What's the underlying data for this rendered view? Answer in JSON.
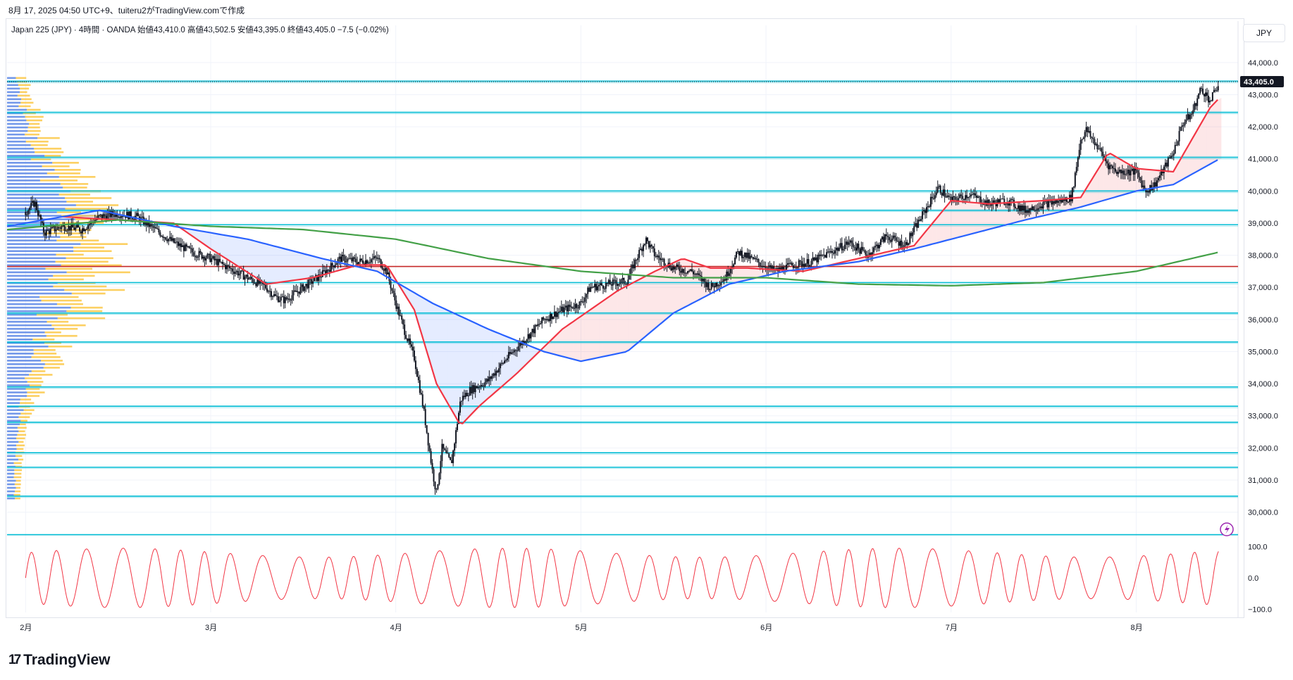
{
  "header": {
    "snapshot_text": "8月 17, 2025 04:50 UTC+9、tuiteru2がTradingView.comで作成",
    "symbol": "Japan 225 (JPY)",
    "interval": "4時間",
    "source": "OANDA",
    "ohlc_text": "始値43,410.0  高値43,502.5  安値43,395.0  終値43,405.0  −7.5 (−0.02%)",
    "currency": "JPY"
  },
  "brand": {
    "name": "TradingView"
  },
  "colors": {
    "candle": "#131722",
    "ma_fast": "#f23645",
    "ma_mid": "#2962ff",
    "ma_slow": "#43a047",
    "level_line": "#00bcd4",
    "red_level": "#c62828",
    "vp_blue": "#5b86e5",
    "vp_yellow": "#fbc02d",
    "oscillator": "#f23645"
  },
  "chart_data": {
    "type": "line",
    "price_axis": {
      "ticks": [
        44000,
        43000,
        42000,
        41000,
        40000,
        39000,
        38000,
        37000,
        36000,
        35000,
        34000,
        33000,
        32000,
        31000,
        30000
      ],
      "tick_labels": [
        "44,000.0",
        "43,000.0",
        "42,000.0",
        "41,000.0",
        "40,000.0",
        "39,000.0",
        "38,000.0",
        "37,000.0",
        "36,000.0",
        "35,000.0",
        "34,000.0",
        "33,000.0",
        "32,000.0",
        "31,000.0",
        "30,000.0"
      ],
      "range": [
        29400,
        44500
      ],
      "last_price": 43405,
      "last_price_label": "43,405.0"
    },
    "time_axis": {
      "months": [
        "2月",
        "3月",
        "4月",
        "5月",
        "6月",
        "7月",
        "8月"
      ],
      "month_index": [
        0,
        1,
        2,
        3,
        4,
        5,
        6
      ],
      "range_months": [
        -0.1,
        6.55
      ]
    },
    "close_path": [
      [
        0.0,
        39350
      ],
      [
        0.05,
        39650
      ],
      [
        0.1,
        38700
      ],
      [
        0.2,
        38900
      ],
      [
        0.3,
        38800
      ],
      [
        0.4,
        39200
      ],
      [
        0.5,
        39300
      ],
      [
        0.6,
        39200
      ],
      [
        0.7,
        38800
      ],
      [
        0.8,
        38400
      ],
      [
        0.9,
        38100
      ],
      [
        1.0,
        37900
      ],
      [
        1.1,
        37600
      ],
      [
        1.2,
        37300
      ],
      [
        1.3,
        37000
      ],
      [
        1.35,
        36700
      ],
      [
        1.4,
        36600
      ],
      [
        1.5,
        37000
      ],
      [
        1.6,
        37400
      ],
      [
        1.7,
        37900
      ],
      [
        1.8,
        37800
      ],
      [
        1.9,
        37900
      ],
      [
        1.95,
        37500
      ],
      [
        2.0,
        36500
      ],
      [
        2.05,
        35600
      ],
      [
        2.1,
        34800
      ],
      [
        2.15,
        33200
      ],
      [
        2.2,
        31200
      ],
      [
        2.22,
        30600
      ],
      [
        2.25,
        32000
      ],
      [
        2.3,
        31500
      ],
      [
        2.35,
        33500
      ],
      [
        2.4,
        33800
      ],
      [
        2.5,
        34100
      ],
      [
        2.6,
        34800
      ],
      [
        2.7,
        35400
      ],
      [
        2.8,
        36000
      ],
      [
        2.9,
        36300
      ],
      [
        3.0,
        36500
      ],
      [
        3.05,
        37000
      ],
      [
        3.15,
        37100
      ],
      [
        3.25,
        37200
      ],
      [
        3.3,
        37900
      ],
      [
        3.35,
        38500
      ],
      [
        3.4,
        38000
      ],
      [
        3.5,
        37600
      ],
      [
        3.6,
        37500
      ],
      [
        3.7,
        37000
      ],
      [
        3.78,
        37300
      ],
      [
        3.85,
        38100
      ],
      [
        3.95,
        37800
      ],
      [
        4.05,
        37500
      ],
      [
        4.15,
        37700
      ],
      [
        4.25,
        37800
      ],
      [
        4.35,
        38100
      ],
      [
        4.45,
        38400
      ],
      [
        4.55,
        38000
      ],
      [
        4.65,
        38600
      ],
      [
        4.75,
        38300
      ],
      [
        4.85,
        39300
      ],
      [
        4.93,
        40100
      ],
      [
        5.0,
        39700
      ],
      [
        5.1,
        39900
      ],
      [
        5.2,
        39600
      ],
      [
        5.3,
        39700
      ],
      [
        5.4,
        39400
      ],
      [
        5.5,
        39600
      ],
      [
        5.6,
        39700
      ],
      [
        5.65,
        39800
      ],
      [
        5.7,
        41600
      ],
      [
        5.73,
        41900
      ],
      [
        5.8,
        41300
      ],
      [
        5.85,
        40800
      ],
      [
        5.9,
        40600
      ],
      [
        6.0,
        40600
      ],
      [
        6.05,
        40000
      ],
      [
        6.1,
        40200
      ],
      [
        6.15,
        40700
      ],
      [
        6.2,
        41200
      ],
      [
        6.25,
        42100
      ],
      [
        6.3,
        42400
      ],
      [
        6.35,
        43200
      ],
      [
        6.4,
        42800
      ],
      [
        6.45,
        43400
      ]
    ],
    "series": [
      {
        "values": [
          [
            0.2,
            39200
          ],
          [
            0.8,
            39000
          ],
          [
            1.0,
            38200
          ],
          [
            1.3,
            37100
          ],
          [
            1.55,
            37300
          ],
          [
            1.8,
            37700
          ],
          [
            1.95,
            37700
          ],
          [
            2.1,
            36300
          ],
          [
            2.22,
            34000
          ],
          [
            2.35,
            32700
          ],
          [
            2.45,
            33300
          ],
          [
            2.65,
            34300
          ],
          [
            2.9,
            35700
          ],
          [
            3.2,
            36900
          ],
          [
            3.4,
            37500
          ],
          [
            3.55,
            37900
          ],
          [
            3.7,
            37600
          ],
          [
            3.9,
            37600
          ],
          [
            4.2,
            37500
          ],
          [
            4.5,
            37900
          ],
          [
            4.8,
            38300
          ],
          [
            5.0,
            39700
          ],
          [
            5.2,
            39600
          ],
          [
            5.5,
            39700
          ],
          [
            5.7,
            39800
          ],
          [
            5.85,
            41200
          ],
          [
            6.0,
            40700
          ],
          [
            6.2,
            40600
          ],
          [
            6.4,
            42600
          ],
          [
            6.45,
            42900
          ]
        ]
      },
      {
        "values": [
          [
            -0.1,
            38900
          ],
          [
            0.4,
            39400
          ],
          [
            0.8,
            38900
          ],
          [
            1.2,
            38500
          ],
          [
            1.6,
            37900
          ],
          [
            1.9,
            37500
          ],
          [
            2.2,
            36500
          ],
          [
            2.5,
            35700
          ],
          [
            2.8,
            35000
          ],
          [
            3.0,
            34700
          ],
          [
            3.25,
            35000
          ],
          [
            3.5,
            36200
          ],
          [
            3.8,
            37100
          ],
          [
            4.1,
            37500
          ],
          [
            4.5,
            37800
          ],
          [
            4.8,
            38200
          ],
          [
            5.0,
            38500
          ],
          [
            5.4,
            39100
          ],
          [
            5.7,
            39500
          ],
          [
            6.0,
            40000
          ],
          [
            6.2,
            40200
          ],
          [
            6.45,
            41000
          ]
        ]
      },
      {
        "values": [
          [
            -0.1,
            38800
          ],
          [
            0.5,
            39100
          ],
          [
            1.0,
            38900
          ],
          [
            1.5,
            38800
          ],
          [
            2.0,
            38500
          ],
          [
            2.5,
            37900
          ],
          [
            3.0,
            37500
          ],
          [
            3.5,
            37300
          ],
          [
            4.0,
            37300
          ],
          [
            4.5,
            37100
          ],
          [
            5.0,
            37050
          ],
          [
            5.5,
            37150
          ],
          [
            6.0,
            37500
          ],
          [
            6.3,
            37900
          ],
          [
            6.45,
            38100
          ]
        ]
      }
    ],
    "horizontal_levels": [
      43420,
      42450,
      41050,
      40000,
      39400,
      38950,
      37150,
      36200,
      35300,
      33900,
      33300,
      32800,
      31850,
      31400,
      30500
    ],
    "red_level": 37650,
    "oscillator": {
      "ticks": [
        100,
        0,
        -100
      ],
      "tick_labels": [
        "100.0",
        "0.0",
        "−100.0"
      ],
      "range": [
        -110,
        110
      ]
    },
    "grid": true,
    "legend": "none"
  }
}
